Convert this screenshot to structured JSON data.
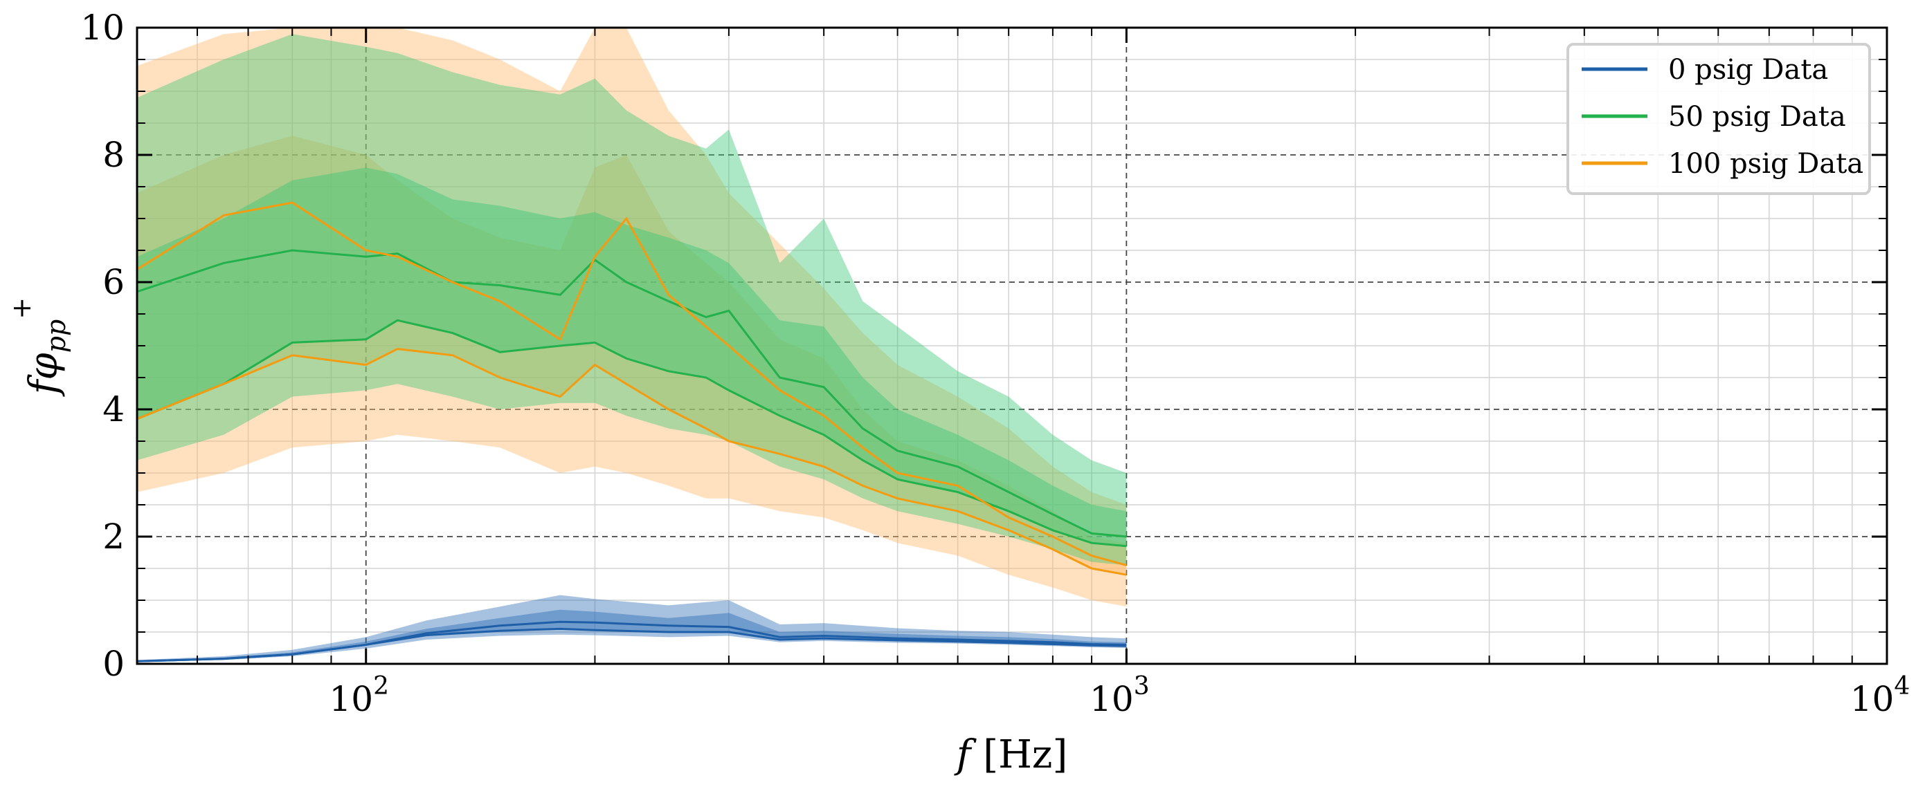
{
  "chart_data": {
    "type": "line",
    "xlabel_main": "f",
    "xlabel_unit": "[Hz]",
    "ylabel_main": "fφ",
    "ylabel_sub": "pp",
    "ylabel_sup": "+",
    "xscale": "log",
    "xlim": [
      50,
      10000
    ],
    "ylim": [
      0,
      10
    ],
    "x_major_ticks": [
      {
        "value": 100,
        "base": "10",
        "exp": "2"
      },
      {
        "value": 1000,
        "base": "10",
        "exp": "3"
      },
      {
        "value": 10000,
        "base": "10",
        "exp": "4"
      }
    ],
    "y_ticks": [
      {
        "value": 0,
        "label": "0"
      },
      {
        "value": 2,
        "label": "2"
      },
      {
        "value": 4,
        "label": "4"
      },
      {
        "value": 6,
        "label": "6"
      },
      {
        "value": 8,
        "label": "8"
      },
      {
        "value": 10,
        "label": "10"
      }
    ],
    "grid": true,
    "legend_position": "top-right",
    "series": [
      {
        "name": "0 psig Data",
        "color": "#1f5fa8",
        "band_color": "#2c6db5",
        "x": [
          50,
          65,
          80,
          100,
          120,
          150,
          180,
          200,
          250,
          300,
          350,
          400,
          500,
          600,
          700,
          800,
          900,
          1000
        ],
        "mean": [
          0.04,
          0.08,
          0.15,
          0.3,
          0.48,
          0.6,
          0.66,
          0.65,
          0.6,
          0.58,
          0.42,
          0.44,
          0.4,
          0.38,
          0.36,
          0.34,
          0.31,
          0.3
        ],
        "mid_lower": [
          0.04,
          0.08,
          0.15,
          0.3,
          0.45,
          0.52,
          0.55,
          0.53,
          0.5,
          0.5,
          0.38,
          0.4,
          0.37,
          0.35,
          0.33,
          0.31,
          0.29,
          0.28
        ],
        "mid_upper": [
          0.05,
          0.1,
          0.18,
          0.35,
          0.55,
          0.72,
          0.85,
          0.82,
          0.72,
          0.8,
          0.5,
          0.52,
          0.47,
          0.44,
          0.42,
          0.39,
          0.35,
          0.34
        ],
        "outer_lower": [
          0.03,
          0.06,
          0.12,
          0.24,
          0.38,
          0.44,
          0.46,
          0.45,
          0.42,
          0.44,
          0.34,
          0.36,
          0.33,
          0.32,
          0.3,
          0.28,
          0.26,
          0.25
        ],
        "outer_upper": [
          0.06,
          0.12,
          0.22,
          0.42,
          0.68,
          0.9,
          1.08,
          1.02,
          0.92,
          1.0,
          0.62,
          0.64,
          0.56,
          0.52,
          0.5,
          0.46,
          0.42,
          0.4
        ]
      },
      {
        "name": "50 psig Data",
        "color": "#22b14c",
        "band_color": "#3cc878",
        "x": [
          50,
          65,
          80,
          100,
          110,
          130,
          150,
          180,
          200,
          220,
          250,
          280,
          300,
          350,
          400,
          450,
          500,
          600,
          700,
          800,
          900,
          1000
        ],
        "mean": [
          5.85,
          6.3,
          6.5,
          6.4,
          6.45,
          6.0,
          5.95,
          5.8,
          6.35,
          6.0,
          5.7,
          5.45,
          5.55,
          4.5,
          4.35,
          3.7,
          3.35,
          3.1,
          2.7,
          2.35,
          2.05,
          2.0
        ],
        "mid_lower": [
          3.85,
          4.4,
          5.05,
          5.1,
          5.4,
          5.2,
          4.9,
          5.0,
          5.05,
          4.8,
          4.6,
          4.5,
          4.3,
          3.9,
          3.6,
          3.2,
          2.9,
          2.7,
          2.4,
          2.1,
          1.9,
          1.85
        ],
        "mid_upper": [
          6.4,
          7.0,
          7.6,
          7.8,
          7.7,
          7.3,
          7.2,
          7.0,
          7.1,
          6.9,
          6.7,
          6.5,
          6.3,
          5.4,
          5.3,
          4.5,
          4.0,
          3.6,
          3.2,
          2.8,
          2.5,
          2.4
        ],
        "outer_lower": [
          3.2,
          3.6,
          4.2,
          4.3,
          4.4,
          4.2,
          4.0,
          4.1,
          4.1,
          3.9,
          3.7,
          3.6,
          3.5,
          3.1,
          2.9,
          2.6,
          2.4,
          2.2,
          2.0,
          1.8,
          1.6,
          1.55
        ],
        "outer_upper": [
          8.9,
          9.5,
          9.9,
          9.7,
          9.6,
          9.3,
          9.1,
          8.95,
          9.2,
          8.7,
          8.3,
          8.1,
          8.4,
          6.3,
          7.0,
          5.7,
          5.3,
          4.6,
          4.2,
          3.6,
          3.2,
          3.0
        ]
      },
      {
        "name": "100 psig Data",
        "color": "#f39c12",
        "band_color": "#ffb866",
        "x": [
          50,
          65,
          80,
          100,
          110,
          130,
          150,
          180,
          200,
          220,
          250,
          280,
          300,
          350,
          400,
          450,
          500,
          600,
          700,
          800,
          900,
          1000
        ],
        "mean": [
          6.2,
          7.05,
          7.25,
          6.5,
          6.4,
          6.0,
          5.7,
          5.1,
          6.4,
          7.0,
          5.8,
          5.3,
          5.0,
          4.3,
          3.9,
          3.4,
          3.0,
          2.8,
          2.3,
          2.0,
          1.7,
          1.55
        ],
        "mid_lower": [
          3.85,
          4.4,
          4.85,
          4.7,
          4.95,
          4.85,
          4.5,
          4.2,
          4.7,
          4.4,
          4.0,
          3.7,
          3.5,
          3.3,
          3.1,
          2.8,
          2.6,
          2.4,
          2.1,
          1.8,
          1.5,
          1.4
        ],
        "mid_upper": [
          7.4,
          8.0,
          8.3,
          8.0,
          7.6,
          7.0,
          6.7,
          6.5,
          7.8,
          8.0,
          6.8,
          6.3,
          6.0,
          5.1,
          4.8,
          4.0,
          3.5,
          3.2,
          2.8,
          2.4,
          2.0,
          1.9
        ],
        "outer_lower": [
          2.7,
          3.0,
          3.4,
          3.5,
          3.6,
          3.5,
          3.4,
          3.0,
          3.1,
          3.0,
          2.8,
          2.6,
          2.6,
          2.4,
          2.3,
          2.1,
          1.9,
          1.7,
          1.4,
          1.2,
          1.0,
          0.9
        ],
        "outer_upper": [
          9.4,
          9.9,
          10.0,
          10.0,
          10.0,
          9.8,
          9.5,
          9.0,
          10.0,
          10.0,
          8.7,
          8.0,
          7.4,
          6.6,
          5.9,
          5.2,
          4.7,
          4.2,
          3.7,
          3.1,
          2.7,
          2.5
        ]
      }
    ]
  }
}
